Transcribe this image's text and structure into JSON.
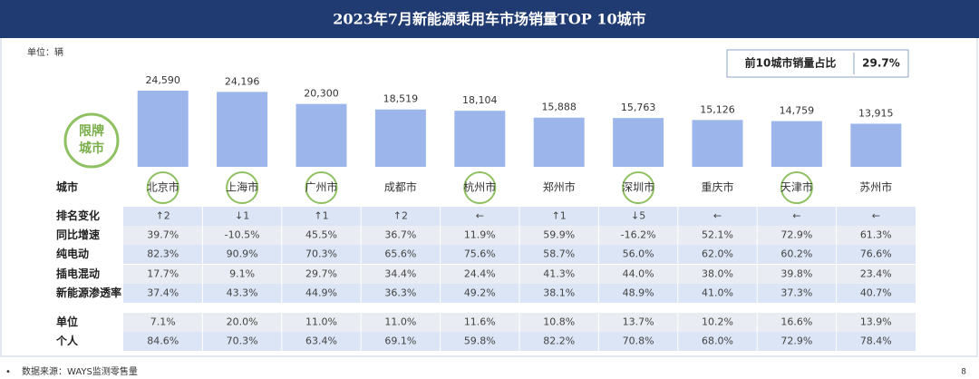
{
  "title": "2023年7月新能源乘用车市场销量TOP 10城市",
  "unit_label": "单位：辆",
  "share_box": {
    "label": "前10城市销量占比",
    "value": "29.7%"
  },
  "chart_data": {
    "type": "bar",
    "categories": [
      "北京市",
      "上海市",
      "广州市",
      "成都市",
      "杭州市",
      "郑州市",
      "深圳市",
      "重庆市",
      "天津市",
      "苏州市"
    ],
    "values": [
      24590,
      24196,
      20300,
      18519,
      18104,
      15888,
      15763,
      15126,
      14759,
      13915
    ],
    "value_labels": [
      "24,590",
      "24,196",
      "20,300",
      "18,519",
      "18,104",
      "15,888",
      "15,763",
      "15,126",
      "14,759",
      "13,915"
    ],
    "color": "#9cb6ec",
    "category_header": "城市",
    "restricted_badge": [
      "限牌",
      "城市"
    ],
    "restricted": [
      true,
      true,
      true,
      false,
      true,
      false,
      true,
      false,
      true,
      false
    ],
    "restricted_color": "#8fc163"
  },
  "table": {
    "rows": [
      {
        "label": "排名变化",
        "values": [
          "↑2",
          "↓1",
          "↑1",
          "↑2",
          "←",
          "↑1",
          "↓5",
          "←",
          "←",
          "←"
        ]
      },
      {
        "label": "同比增速",
        "values": [
          "39.7%",
          "-10.5%",
          "45.5%",
          "36.7%",
          "11.9%",
          "59.9%",
          "-16.2%",
          "52.1%",
          "72.9%",
          "61.3%"
        ]
      },
      {
        "label": "纯电动",
        "values": [
          "82.3%",
          "90.9%",
          "70.3%",
          "65.6%",
          "75.6%",
          "58.7%",
          "56.0%",
          "62.0%",
          "60.2%",
          "76.6%"
        ]
      },
      {
        "label": "插电混动",
        "values": [
          "17.7%",
          "9.1%",
          "29.7%",
          "34.4%",
          "24.4%",
          "41.3%",
          "44.0%",
          "38.0%",
          "39.8%",
          "23.4%"
        ]
      },
      {
        "label": "新能源渗透率",
        "values": [
          "37.4%",
          "43.3%",
          "44.9%",
          "36.3%",
          "49.2%",
          "38.1%",
          "48.9%",
          "41.0%",
          "37.3%",
          "40.7%"
        ]
      },
      {
        "label": "单位",
        "values": [
          "7.1%",
          "20.0%",
          "11.0%",
          "11.0%",
          "11.6%",
          "10.8%",
          "13.7%",
          "10.2%",
          "16.6%",
          "13.9%"
        ]
      },
      {
        "label": "个人",
        "values": [
          "84.6%",
          "70.3%",
          "63.4%",
          "69.1%",
          "59.8%",
          "82.2%",
          "70.8%",
          "68.0%",
          "72.9%",
          "78.4%"
        ]
      }
    ]
  },
  "source": "数据来源：WAYS监测零售量",
  "page_number": "8"
}
